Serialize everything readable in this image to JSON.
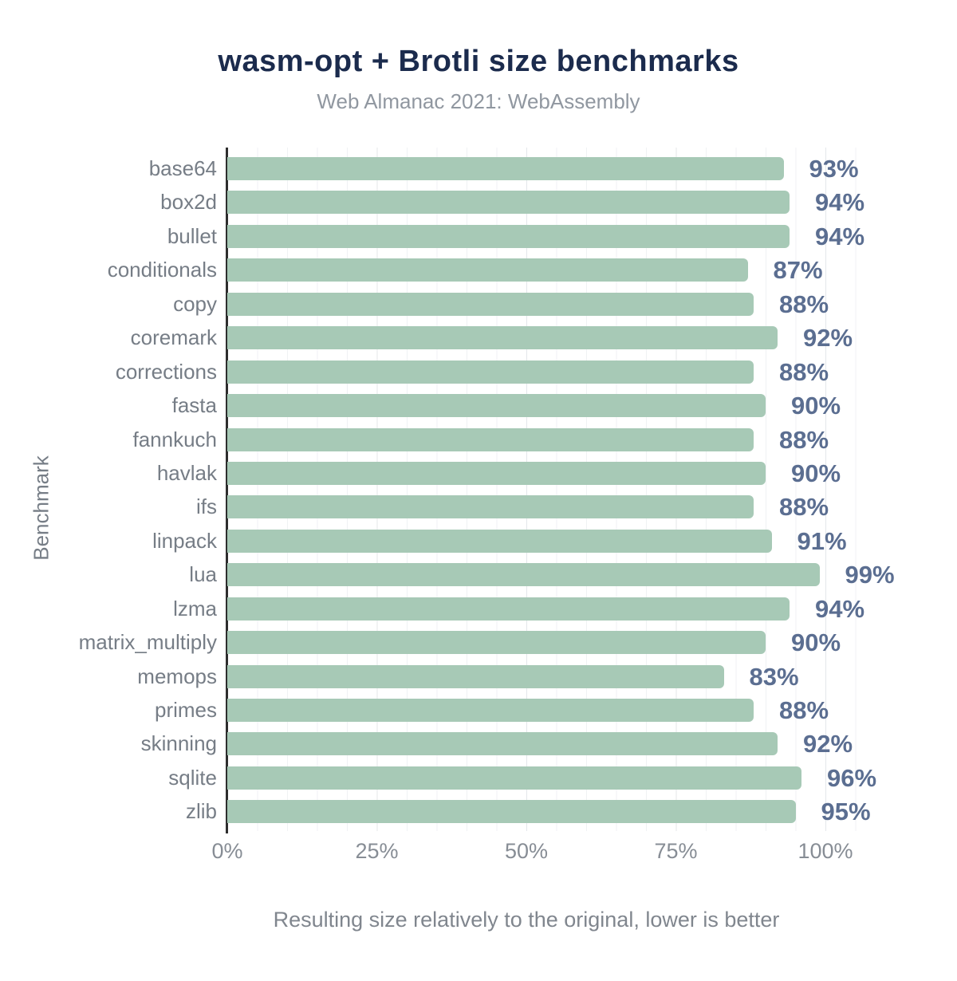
{
  "chart_data": {
    "type": "bar",
    "orientation": "horizontal",
    "title": "wasm-opt + Brotli size benchmarks",
    "subtitle": "Web Almanac 2021: WebAssembly",
    "xlabel": "Resulting size relatively to the original, lower is better",
    "ylabel": "Benchmark",
    "categories": [
      "base64",
      "box2d",
      "bullet",
      "conditionals",
      "copy",
      "coremark",
      "corrections",
      "fasta",
      "fannkuch",
      "havlak",
      "ifs",
      "linpack",
      "lua",
      "lzma",
      "matrix_multiply",
      "memops",
      "primes",
      "skinning",
      "sqlite",
      "zlib"
    ],
    "values": [
      93,
      94,
      94,
      87,
      88,
      92,
      88,
      90,
      88,
      90,
      88,
      91,
      99,
      94,
      90,
      83,
      88,
      92,
      96,
      95
    ],
    "value_labels": [
      "93%",
      "94%",
      "94%",
      "87%",
      "88%",
      "92%",
      "88%",
      "90%",
      "88%",
      "90%",
      "88%",
      "91%",
      "99%",
      "94%",
      "90%",
      "83%",
      "88%",
      "92%",
      "96%",
      "95%"
    ],
    "x_ticks": [
      {
        "label": "0%",
        "value": 0
      },
      {
        "label": "25%",
        "value": 25
      },
      {
        "label": "50%",
        "value": 50
      },
      {
        "label": "75%",
        "value": 75
      },
      {
        "label": "100%",
        "value": 100
      }
    ],
    "xlim": [
      0,
      110
    ],
    "grid": true,
    "legend": null,
    "colors": {
      "bar": "#a7c9b6",
      "value_label": "#5b6e91",
      "title": "#1b2b4d",
      "subtitle": "#9097a0",
      "category_label": "#767d86",
      "tick_label": "#878d95",
      "axis_line": "#2e2e2e",
      "grid_minor": "#f0f2f4",
      "grid_major": "#e4e7ea"
    }
  }
}
